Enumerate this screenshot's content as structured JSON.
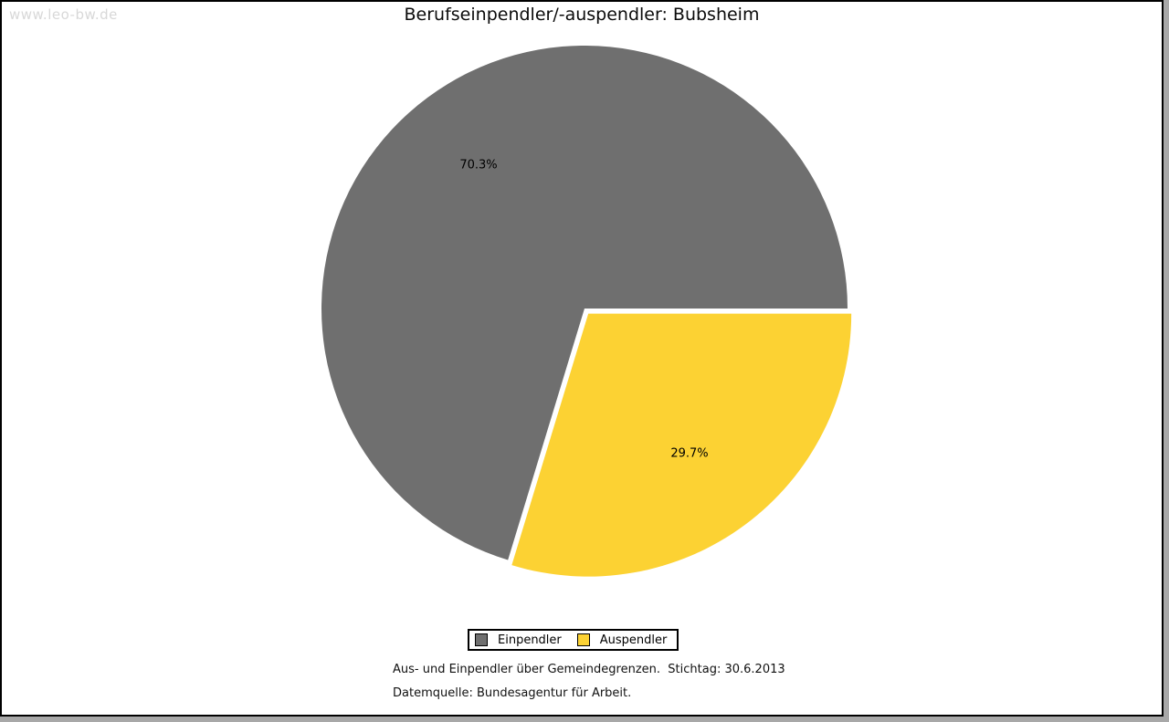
{
  "watermark": "www.leo-bw.de",
  "title": "Berufseinpendler/-auspendler: Bubsheim",
  "chart_data": {
    "type": "pie",
    "title": "Berufseinpendler/-auspendler: Bubsheim",
    "start_angle_deg": 106.92,
    "direction": "clockwise",
    "legend_position": "bottom",
    "slices": [
      {
        "label": "Einpendler",
        "value": 70.3,
        "display": "70.3%",
        "color": "#6f6f6f",
        "exploded": false
      },
      {
        "label": "Auspendler",
        "value": 29.7,
        "display": "29.7%",
        "color": "#fcd233",
        "exploded": true
      }
    ]
  },
  "footer": {
    "line1": "Aus- und Einpendler über Gemeindegrenzen.  Stichtag: 30.6.2013",
    "line2": "Datemquelle: Bundesagentur für Arbeit."
  },
  "colors": {
    "canvas_bg": "#ffffff",
    "frame": "#000000",
    "outer_bg": "#a8a8a8",
    "watermark": "#d8d8d8",
    "einpendler": "#6f6f6f",
    "auspendler": "#fcd233"
  }
}
